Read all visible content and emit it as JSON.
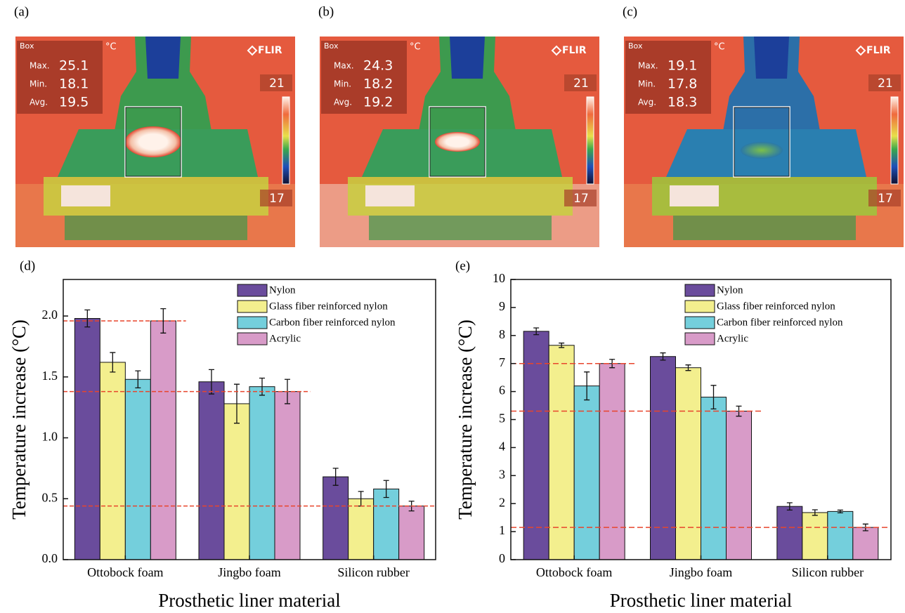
{
  "images": [
    {
      "label": "(a)",
      "box": "Box",
      "unit": "°C",
      "brand": "FLIR",
      "stats": [
        {
          "name": "Max.",
          "value": 25.1
        },
        {
          "name": "Min.",
          "value": 18.1
        },
        {
          "name": "Avg.",
          "value": 19.5
        }
      ],
      "scale_max": 21,
      "scale_min": 17
    },
    {
      "label": "(b)",
      "box": "Box",
      "unit": "°C",
      "brand": "FLIR",
      "stats": [
        {
          "name": "Max.",
          "value": 24.3
        },
        {
          "name": "Min.",
          "value": 18.2
        },
        {
          "name": "Avg.",
          "value": 19.2
        }
      ],
      "scale_max": 21,
      "scale_min": 17
    },
    {
      "label": "(c)",
      "box": "Box",
      "unit": "°C",
      "brand": "FLIR",
      "stats": [
        {
          "name": "Max.",
          "value": 19.1
        },
        {
          "name": "Min.",
          "value": 17.8
        },
        {
          "name": "Avg.",
          "value": 18.3
        }
      ],
      "scale_max": 21,
      "scale_min": 17
    }
  ],
  "chart_data": [
    {
      "type": "bar",
      "panel": "(d)",
      "y_label": "Temperature increase (°C)",
      "x_label": "Prosthetic liner material",
      "categories": [
        "Ottobock foam",
        "Jingbo foam",
        "Silicon rubber"
      ],
      "series": [
        {
          "name": "Nylon",
          "color": "#6a4c9c",
          "values": [
            1.98,
            1.46,
            0.68
          ],
          "errors": [
            0.07,
            0.1,
            0.07
          ]
        },
        {
          "name": "Glass fiber reinforced nylon",
          "color": "#f3ef8e",
          "values": [
            1.62,
            1.28,
            0.5
          ],
          "errors": [
            0.08,
            0.16,
            0.06
          ]
        },
        {
          "name": "Carbon fiber reinforced nylon",
          "color": "#74cfdc",
          "values": [
            1.48,
            1.42,
            0.58
          ],
          "errors": [
            0.07,
            0.07,
            0.07
          ]
        },
        {
          "name": "Acrylic",
          "color": "#d89bc8",
          "values": [
            1.96,
            1.38,
            0.44
          ],
          "errors": [
            0.1,
            0.1,
            0.04
          ]
        }
      ],
      "reference_lines": [
        1.96,
        1.38,
        0.44
      ],
      "reference_color": "#e8452c",
      "ylim": [
        0,
        2.3
      ],
      "yticks": [
        {
          "value": 0,
          "label": "0.0"
        },
        0.5,
        {
          "value": 1,
          "label": "1.0"
        },
        1.5,
        {
          "value": 2,
          "label": "2.0"
        }
      ],
      "legend": "upper right"
    },
    {
      "type": "bar",
      "panel": "(e)",
      "y_label": "Temperature increase (°C)",
      "x_label": "Prosthetic liner material",
      "categories": [
        "Ottobock foam",
        "Jingbo foam",
        "Silicon rubber"
      ],
      "series": [
        {
          "name": "Nylon",
          "color": "#6a4c9c",
          "values": [
            8.15,
            7.25,
            1.9
          ],
          "errors": [
            0.12,
            0.13,
            0.13
          ]
        },
        {
          "name": "Glass fiber reinforced nylon",
          "color": "#f3ef8e",
          "values": [
            7.65,
            6.85,
            1.68
          ],
          "errors": [
            0.08,
            0.1,
            0.1
          ]
        },
        {
          "name": "Carbon fiber reinforced nylon",
          "color": "#74cfdc",
          "values": [
            6.2,
            5.8,
            1.72
          ],
          "errors": [
            0.5,
            0.42,
            0.05
          ]
        },
        {
          "name": "Acrylic",
          "color": "#d89bc8",
          "values": [
            7.0,
            5.3,
            1.15
          ],
          "errors": [
            0.15,
            0.18,
            0.12
          ]
        }
      ],
      "reference_lines": [
        7.0,
        5.3,
        1.15
      ],
      "reference_color": "#e8452c",
      "ylim": [
        0,
        10
      ],
      "yticks": [
        0,
        1,
        2,
        3,
        4,
        5,
        6,
        7,
        8,
        9,
        10
      ],
      "legend": "upper right"
    }
  ]
}
